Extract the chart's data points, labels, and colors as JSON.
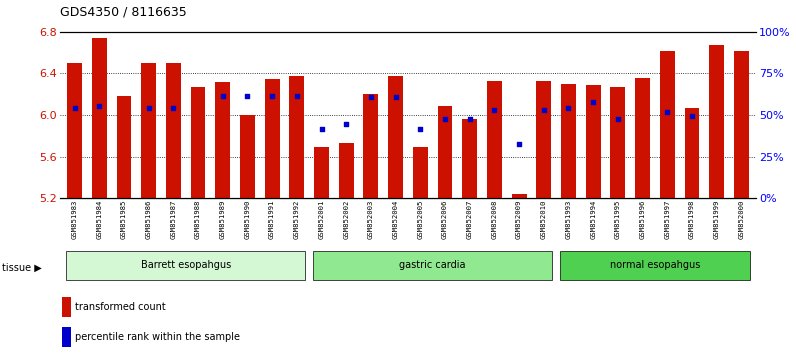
{
  "title": "GDS4350 / 8116635",
  "samples": [
    "GSM851983",
    "GSM851984",
    "GSM851985",
    "GSM851986",
    "GSM851987",
    "GSM851988",
    "GSM851989",
    "GSM851990",
    "GSM851991",
    "GSM851992",
    "GSM852001",
    "GSM852002",
    "GSM852003",
    "GSM852004",
    "GSM852005",
    "GSM852006",
    "GSM852007",
    "GSM852008",
    "GSM852009",
    "GSM852010",
    "GSM851993",
    "GSM851994",
    "GSM851995",
    "GSM851996",
    "GSM851997",
    "GSM851998",
    "GSM851999",
    "GSM852000"
  ],
  "red_values": [
    6.5,
    6.74,
    6.18,
    6.5,
    6.5,
    6.27,
    6.32,
    6.0,
    6.35,
    6.38,
    5.69,
    5.73,
    6.2,
    6.38,
    5.69,
    6.09,
    5.96,
    6.33,
    5.24,
    6.33,
    6.3,
    6.29,
    6.27,
    6.36,
    6.62,
    6.07,
    6.67,
    6.62
  ],
  "blue_values": [
    6.07,
    6.09,
    null,
    6.07,
    6.07,
    null,
    6.18,
    6.18,
    6.18,
    6.18,
    5.87,
    5.91,
    6.17,
    6.17,
    5.87,
    5.96,
    5.96,
    6.05,
    5.72,
    6.05,
    6.07,
    6.13,
    5.96,
    null,
    6.03,
    5.99,
    null,
    null
  ],
  "groups": [
    {
      "label": "Barrett esopahgus",
      "start": 0,
      "end": 9,
      "color": "#d4f7d4"
    },
    {
      "label": "gastric cardia",
      "start": 10,
      "end": 19,
      "color": "#90e890"
    },
    {
      "label": "normal esopahgus",
      "start": 20,
      "end": 27,
      "color": "#50d050"
    }
  ],
  "ymin": 5.2,
  "ymax": 6.8,
  "yticks": [
    5.2,
    5.6,
    6.0,
    6.4,
    6.8
  ],
  "right_ytick_labels": [
    "0%",
    "25%",
    "50%",
    "75%",
    "100%"
  ],
  "right_yticks": [
    0,
    25,
    50,
    75,
    100
  ],
  "bar_color": "#cc1100",
  "dot_color": "#0000cc"
}
